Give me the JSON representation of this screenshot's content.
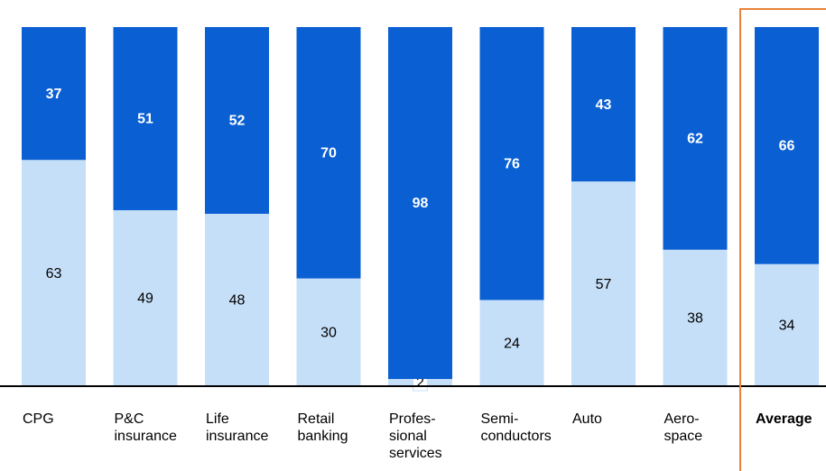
{
  "chart_data": {
    "type": "stacked_bar",
    "categories": [
      "CPG",
      "P&C\ninsurance",
      "Life\ninsurance",
      "Retail\nbanking",
      "Profes-\nsional\nservices",
      "Semi-\nconductors",
      "Auto",
      "Aero-\nspace",
      "Average"
    ],
    "series": [
      {
        "color": "#c6dff8",
        "values": [
          63,
          49,
          48,
          30,
          2,
          24,
          57,
          38,
          34
        ]
      },
      {
        "color": "#0a5fd2",
        "values": [
          37,
          51,
          52,
          70,
          98,
          76,
          43,
          62,
          66
        ]
      }
    ],
    "ylim": [
      0,
      100
    ],
    "highlight": 8,
    "highlight_color": "#e8823a"
  }
}
